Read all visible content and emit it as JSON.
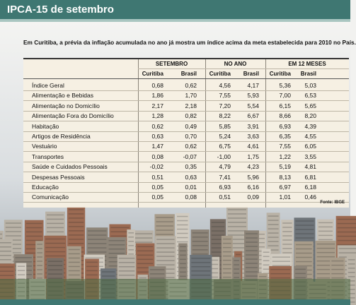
{
  "header": {
    "title": "IPCA-15 de setembro"
  },
  "subtitle": "Em Curitiba, a prévia da inflação acumulada no ano já mostra um índice acima da meta estabelecida para 2010 no País.",
  "table": {
    "groups": [
      "SETEMBRO",
      "NO ANO",
      "EM 12 MESES"
    ],
    "subheaders": [
      "Curitiba",
      "Brasil",
      "Curitiba",
      "Brasil",
      "Curitiba",
      "Brasil"
    ],
    "rows": [
      [
        "Índice Geral",
        "0,68",
        "0,62",
        "4,56",
        "4,17",
        "5,36",
        "5,03"
      ],
      [
        "Alimentação e Bebidas",
        "1,86",
        "1,70",
        "7,55",
        "5,93",
        "7,00",
        "6,53"
      ],
      [
        "Alimentação no Domicílio",
        "2,17",
        "2,18",
        "7,20",
        "5,54",
        "6,15",
        "5,65"
      ],
      [
        "Alimentação Fora do Domicílio",
        "1,28",
        "0,82",
        "8,22",
        "6,67",
        "8,66",
        "8,20"
      ],
      [
        "Habitação",
        "0,62",
        "0,49",
        "5,85",
        "3,91",
        "6,93",
        "4,39"
      ],
      [
        "Artigos de Residência",
        "0,63",
        "0,70",
        "5,24",
        "3,63",
        "6,35",
        "4,55"
      ],
      [
        "Vestuário",
        "1,47",
        "0,62",
        "6,75",
        "4,61",
        "7,55",
        "6,05"
      ],
      [
        "Transportes",
        "0,08",
        "-0,07",
        "-1,00",
        "1,75",
        "1,22",
        "3,55"
      ],
      [
        "Saúde e Cuidados Pessoais",
        "-0,02",
        "0,35",
        "4,79",
        "4,23",
        "5,19",
        "4,81"
      ],
      [
        "Despesas Pessoais",
        "0,51",
        "0,63",
        "7,41",
        "5,96",
        "8,13",
        "6,81"
      ],
      [
        "Educação",
        "0,05",
        "0,01",
        "6,93",
        "6,16",
        "6,97",
        "6,18"
      ],
      [
        "Comunicação",
        "0,05",
        "0,08",
        "0,51",
        "0,09",
        "1,01",
        "0,46"
      ]
    ],
    "source": "Fonte: IBGE"
  }
}
